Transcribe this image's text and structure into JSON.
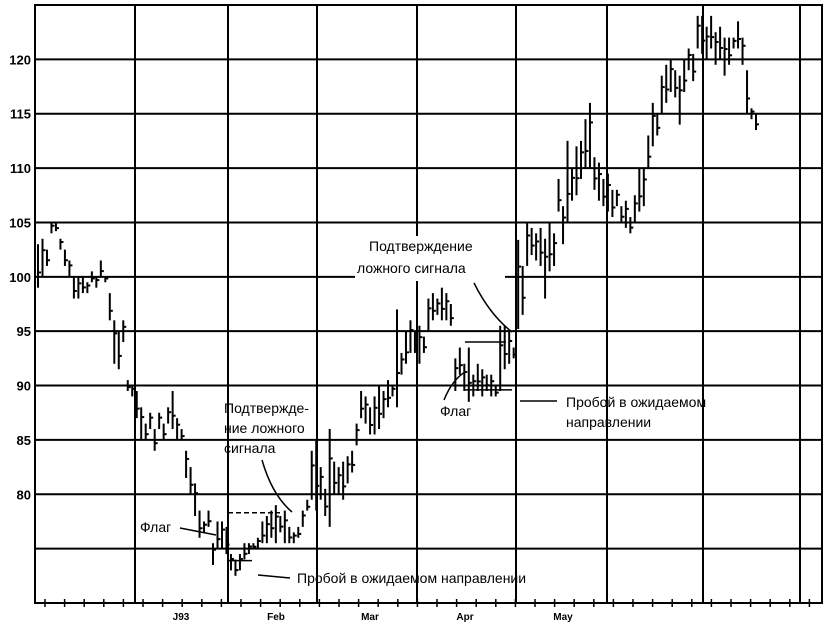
{
  "chart_data": {
    "type": "bar",
    "subtype": "high-low price bars",
    "title": "",
    "xlabel": "",
    "ylabel": "",
    "ylim": [
      70,
      125
    ],
    "y_ticks": [
      80,
      85,
      90,
      95,
      100,
      105,
      110,
      115,
      120
    ],
    "y_tick_labels": [
      "80",
      "85",
      "90",
      "95",
      "100",
      "105",
      "110",
      "115",
      "120"
    ],
    "x_tick_labels": [
      "J93",
      "Feb",
      "Mar",
      "Apr",
      "May"
    ],
    "grid": true,
    "legend": "none",
    "bars_high_low": [
      [
        103,
        99
      ],
      [
        103.5,
        100
      ],
      [
        102.5,
        101
      ],
      [
        105,
        104
      ],
      [
        105,
        104.2
      ],
      [
        103.5,
        102.5
      ],
      [
        102.5,
        101
      ],
      [
        101.5,
        100
      ],
      [
        100,
        98
      ],
      [
        100,
        98
      ],
      [
        100,
        98.5
      ],
      [
        99.5,
        98.5
      ],
      [
        100.5,
        99.5
      ],
      [
        100,
        99
      ],
      [
        101.5,
        100
      ],
      [
        100,
        99.5
      ],
      [
        98.5,
        96
      ],
      [
        96,
        92
      ],
      [
        95,
        91.5
      ],
      [
        96,
        94
      ],
      [
        90.5,
        89.5
      ],
      [
        90,
        89
      ],
      [
        89.5,
        87
      ],
      [
        88,
        85
      ],
      [
        86.5,
        85
      ],
      [
        87.5,
        86
      ],
      [
        86,
        84
      ],
      [
        87.5,
        86
      ],
      [
        86.5,
        85
      ],
      [
        88,
        86.5
      ],
      [
        89.5,
        86
      ],
      [
        87,
        85
      ],
      [
        86,
        85
      ],
      [
        84,
        81.5
      ],
      [
        82.5,
        80
      ],
      [
        81,
        78
      ],
      [
        78.5,
        76
      ],
      [
        77.5,
        76.5
      ],
      [
        78.5,
        77
      ],
      [
        75.5,
        73.5
      ],
      [
        77.5,
        75
      ],
      [
        77.5,
        75
      ],
      [
        77,
        74.5
      ],
      [
        74.5,
        73
      ],
      [
        74,
        72.5
      ],
      [
        74.5,
        73
      ],
      [
        75.5,
        74
      ],
      [
        75.5,
        74.5
      ],
      [
        75.5,
        75
      ],
      [
        76,
        75
      ],
      [
        77.5,
        75.5
      ],
      [
        78,
        75.5
      ],
      [
        78.5,
        76
      ],
      [
        79,
        75.5
      ],
      [
        78,
        76.5
      ],
      [
        78.5,
        75.5
      ],
      [
        77,
        75.5
      ],
      [
        76.5,
        75.5
      ],
      [
        77,
        76
      ],
      [
        78.5,
        77
      ],
      [
        79.5,
        78.5
      ],
      [
        84,
        79.5
      ],
      [
        85,
        78.5
      ],
      [
        82.5,
        79.5
      ],
      [
        80.5,
        78
      ],
      [
        86,
        77
      ],
      [
        83,
        80
      ],
      [
        82.5,
        80
      ],
      [
        83,
        79.5
      ],
      [
        83.5,
        81
      ],
      [
        84,
        82
      ],
      [
        86.5,
        84.5
      ],
      [
        89.5,
        87
      ],
      [
        89,
        86.5
      ],
      [
        88,
        85.5
      ],
      [
        89,
        85.5
      ],
      [
        90,
        86
      ],
      [
        89.5,
        87
      ],
      [
        90.5,
        88
      ],
      [
        90,
        89
      ],
      [
        97,
        88
      ],
      [
        93,
        91
      ],
      [
        95,
        92
      ],
      [
        96,
        93
      ],
      [
        95,
        93
      ],
      [
        95.5,
        92
      ],
      [
        94.5,
        93
      ],
      [
        98,
        95
      ],
      [
        98.5,
        96
      ],
      [
        98,
        96.5
      ],
      [
        99,
        96
      ],
      [
        98.5,
        96
      ],
      [
        97.5,
        95.5
      ],
      [
        92.5,
        89.5
      ],
      [
        93.5,
        91
      ],
      [
        92,
        89.5
      ],
      [
        93.5,
        88.5
      ],
      [
        91,
        89
      ],
      [
        92,
        89.5
      ],
      [
        91.5,
        89
      ],
      [
        91,
        89.5
      ],
      [
        91,
        89
      ],
      [
        90,
        89
      ],
      [
        95.5,
        89.5
      ],
      [
        95.5,
        91.5
      ],
      [
        95,
        92
      ],
      [
        93.5,
        92.5
      ],
      [
        103.4,
        95.2
      ],
      [
        101,
        96.5
      ],
      [
        105,
        101
      ],
      [
        104.5,
        102
      ],
      [
        104,
        101.5
      ],
      [
        104.5,
        101
      ],
      [
        103.5,
        98
      ],
      [
        105,
        100.5
      ],
      [
        104,
        101
      ],
      [
        109,
        106
      ],
      [
        106.5,
        103
      ],
      [
        112.5,
        105
      ],
      [
        110,
        107
      ],
      [
        112,
        107.5
      ],
      [
        112.5,
        109
      ],
      [
        114.5,
        110
      ],
      [
        116,
        110
      ],
      [
        111,
        108
      ],
      [
        110.5,
        107
      ],
      [
        109,
        106.5
      ],
      [
        109.5,
        106
      ],
      [
        108,
        105.5
      ],
      [
        108,
        106.5
      ],
      [
        106.5,
        105
      ],
      [
        107,
        104.5
      ],
      [
        105.5,
        104
      ],
      [
        107.5,
        105
      ],
      [
        110,
        106
      ],
      [
        110,
        106.5
      ],
      [
        113,
        110
      ],
      [
        116,
        112
      ],
      [
        115,
        113
      ],
      [
        118.5,
        115
      ],
      [
        119.5,
        116
      ],
      [
        120,
        117
      ],
      [
        119,
        116.5
      ],
      [
        118.5,
        114
      ],
      [
        120,
        117
      ],
      [
        121,
        119
      ],
      [
        120.5,
        118
      ],
      [
        124,
        121
      ],
      [
        124,
        120.5
      ],
      [
        123,
        120
      ],
      [
        124,
        121
      ],
      [
        122.5,
        119.5
      ],
      [
        123,
        120
      ],
      [
        122,
        118.5
      ],
      [
        122,
        119.5
      ],
      [
        122,
        121
      ],
      [
        123.5,
        121
      ],
      [
        122,
        119.5
      ],
      [
        119,
        115
      ],
      [
        115.5,
        114.5
      ],
      [
        115,
        113.5
      ]
    ],
    "flag_lines": [
      {
        "kind": "dashed",
        "value": 78.3,
        "from_label": "J93"
      },
      {
        "kind": "solid",
        "value": 73.9
      },
      {
        "kind": "solid",
        "value": 94.0
      },
      {
        "kind": "solid",
        "value": 89.6
      }
    ],
    "annotations": {
      "confirm_false_signal_1": [
        "Подтвержде-",
        "ние ложного",
        "сигнала"
      ],
      "flag_1": "Флаг",
      "breakout_1": "Пробой в ожидаемом направлении",
      "confirm_false_signal_2": [
        "Подтверждение",
        "ложного сигнала"
      ],
      "flag_2": "Флаг",
      "breakout_2": [
        "Пробой в ожидаемом",
        "направлении"
      ]
    }
  }
}
